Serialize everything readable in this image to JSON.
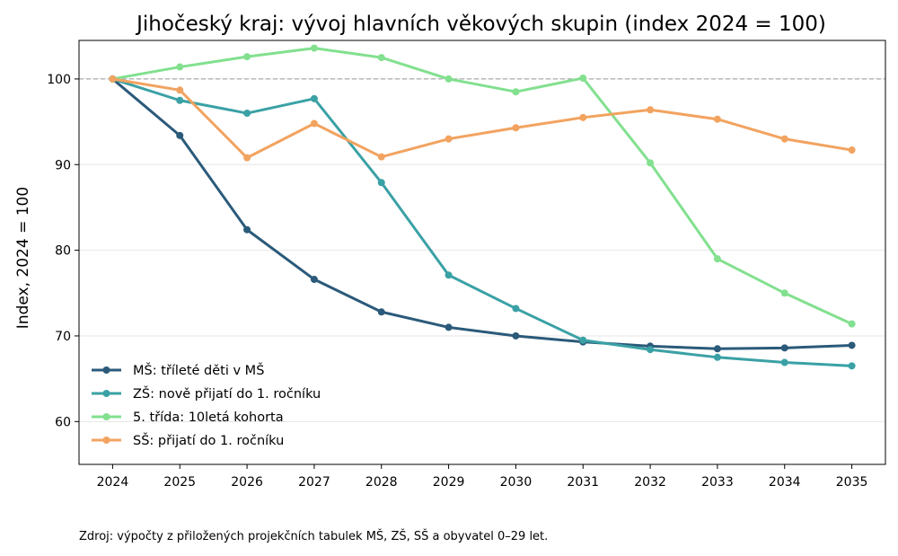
{
  "chart_data": {
    "type": "line",
    "title": "Jihočeský kraj: vývoj hlavních věkových skupin (index 2024 = 100)",
    "xlabel": "",
    "ylabel": "Index, 2024 = 100",
    "x": [
      2024,
      2025,
      2026,
      2027,
      2028,
      2029,
      2030,
      2031,
      2032,
      2033,
      2034,
      2035
    ],
    "xlim": [
      2023.5,
      2035.5
    ],
    "ylim": [
      55,
      104.5
    ],
    "yticks": [
      60,
      70,
      80,
      90,
      100
    ],
    "grid": true,
    "reference_line": 100,
    "legend_position": "lower-left",
    "series": [
      {
        "name": "MŠ: tříleté děti v MŠ",
        "color": "#2b5a7a",
        "values": [
          100,
          93.4,
          82.4,
          76.6,
          72.8,
          71.0,
          70.0,
          69.3,
          68.8,
          68.5,
          68.6,
          68.9
        ]
      },
      {
        "name": "ZŠ: nově přijatí do 1. ročníku",
        "color": "#3aa1a5",
        "values": [
          100,
          97.5,
          96.0,
          97.7,
          87.9,
          77.1,
          73.2,
          69.5,
          68.4,
          67.5,
          66.9,
          66.5
        ]
      },
      {
        "name": "5. třída: 10letá kohorta",
        "color": "#82e08f",
        "values": [
          100,
          101.4,
          102.6,
          103.6,
          102.5,
          100.0,
          98.5,
          100.1,
          90.2,
          79.0,
          75.0,
          71.4
        ]
      },
      {
        "name": "SŠ: přijatí do 1. ročníku",
        "color": "#f2a360",
        "values": [
          100,
          98.7,
          90.8,
          94.8,
          90.9,
          93.0,
          94.3,
          95.5,
          96.4,
          95.3,
          93.0,
          91.7
        ]
      }
    ]
  },
  "source": "Zdroj: výpočty z přiložených projekčních tabulek MŠ, ZŠ, SŠ a obyvatel 0–29 let."
}
